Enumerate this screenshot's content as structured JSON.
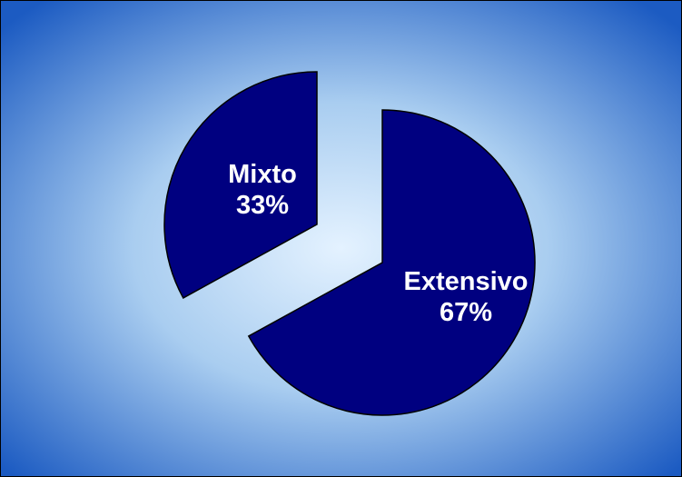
{
  "chart_data": {
    "type": "pie",
    "categories": [
      "Extensivo",
      "Mixto"
    ],
    "values": [
      67,
      33
    ],
    "labels": [
      {
        "name": "Extensivo",
        "percent": "67%"
      },
      {
        "name": "Mixto",
        "percent": "33%"
      }
    ],
    "colors": {
      "slice_fill": "#000080",
      "slice_stroke": "#000000",
      "label_text": "#ffffff",
      "background_center": "#dceeff",
      "background_edge": "#1f5fc4"
    },
    "exploded": true,
    "start_angle_deg": 0,
    "legend": "none"
  }
}
